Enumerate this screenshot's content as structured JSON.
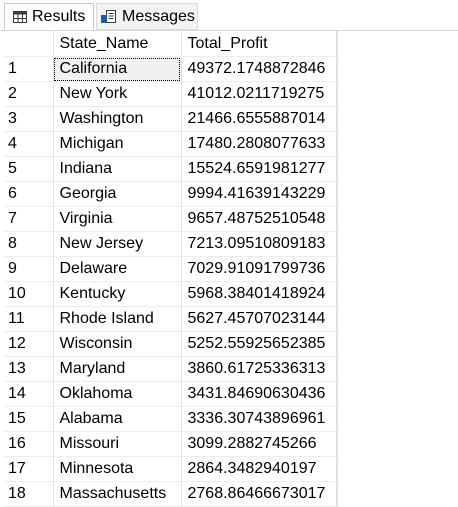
{
  "tabs": {
    "results": {
      "label": "Results",
      "icon": "grid-icon"
    },
    "messages": {
      "label": "Messages",
      "icon": "document-icon"
    }
  },
  "grid": {
    "columns": [
      "State_Name",
      "Total_Profit"
    ],
    "rows": [
      {
        "idx": "1",
        "state": "California",
        "profit": "49372.1748872846"
      },
      {
        "idx": "2",
        "state": "New York",
        "profit": "41012.0211719275"
      },
      {
        "idx": "3",
        "state": "Washington",
        "profit": "21466.6555887014"
      },
      {
        "idx": "4",
        "state": "Michigan",
        "profit": "17480.2808077633"
      },
      {
        "idx": "5",
        "state": "Indiana",
        "profit": "15524.6591981277"
      },
      {
        "idx": "6",
        "state": "Georgia",
        "profit": "9994.41639143229"
      },
      {
        "idx": "7",
        "state": "Virginia",
        "profit": "9657.48752510548"
      },
      {
        "idx": "8",
        "state": "New Jersey",
        "profit": "7213.09510809183"
      },
      {
        "idx": "9",
        "state": "Delaware",
        "profit": "7029.91091799736"
      },
      {
        "idx": "10",
        "state": "Kentucky",
        "profit": "5968.38401418924"
      },
      {
        "idx": "11",
        "state": "Rhode Island",
        "profit": "5627.45707023144"
      },
      {
        "idx": "12",
        "state": "Wisconsin",
        "profit": "5252.55925652385"
      },
      {
        "idx": "13",
        "state": "Maryland",
        "profit": "3860.61725336313"
      },
      {
        "idx": "14",
        "state": "Oklahoma",
        "profit": "3431.84690630436"
      },
      {
        "idx": "15",
        "state": "Alabama",
        "profit": "3336.30743896961"
      },
      {
        "idx": "16",
        "state": "Missouri",
        "profit": "3099.2882745266"
      },
      {
        "idx": "17",
        "state": "Minnesota",
        "profit": "2864.3482940197"
      },
      {
        "idx": "18",
        "state": "Massachusetts",
        "profit": "2768.86466673017"
      }
    ],
    "selected": {
      "row": 0,
      "column": "State_Name"
    }
  },
  "colors": {
    "grid_line": "#e0e0e0",
    "selected_cell_bg": "#f0f0f0",
    "tab_inactive_bg": "#f3f3f3",
    "icon_blue": "#1e5aa8"
  }
}
